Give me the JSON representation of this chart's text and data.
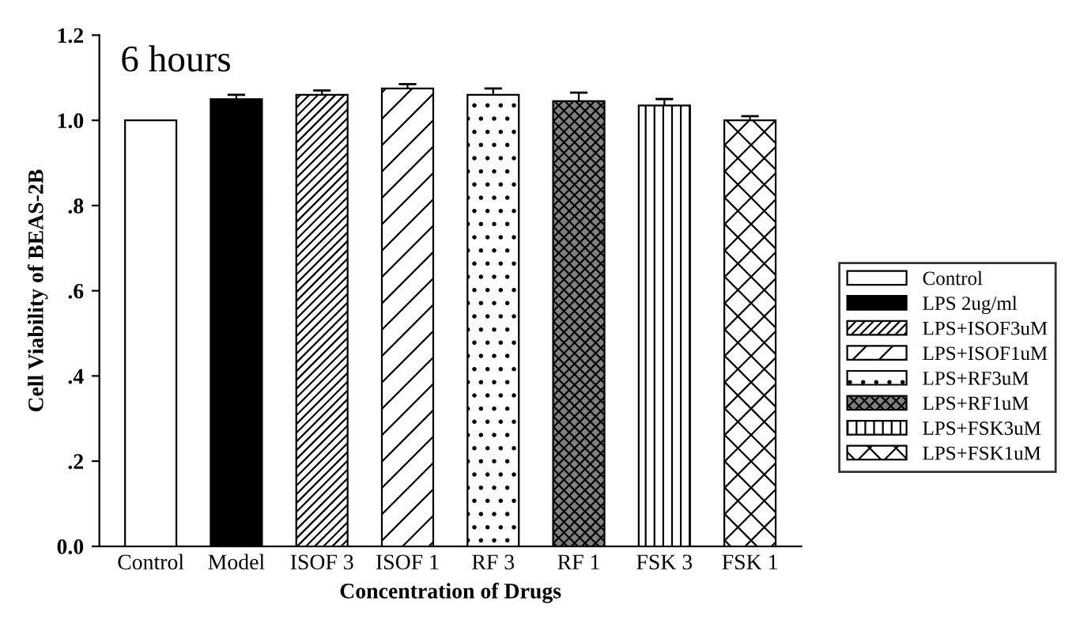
{
  "chart_data": {
    "type": "bar",
    "title": "6 hours",
    "xlabel": "Concentration of Drugs",
    "ylabel": "Cell Viability of BEAS-2B",
    "categories": [
      "Control",
      "Model",
      "ISOF 3",
      "ISOF 1",
      "RF 3",
      "RF 1",
      "FSK 3",
      "FSK 1"
    ],
    "series": [
      {
        "name": "Control",
        "color": "#ffffff",
        "values": [
          1.0,
          null,
          null,
          null,
          null,
          null,
          null,
          null
        ],
        "errors": [
          null,
          null,
          null,
          null,
          null,
          null,
          null,
          null
        ]
      },
      {
        "name": "LPS 2ug/ml",
        "color": "#000000",
        "values": [
          null,
          1.05,
          null,
          null,
          null,
          null,
          null,
          null
        ],
        "errors": [
          null,
          0.01,
          null,
          null,
          null,
          null,
          null,
          null
        ]
      },
      {
        "name": "LPS+ISOF3uM",
        "color": "#ffffff",
        "values": [
          null,
          null,
          1.06,
          null,
          null,
          null,
          null,
          null
        ],
        "errors": [
          null,
          null,
          0.01,
          null,
          null,
          null,
          null,
          null
        ]
      },
      {
        "name": "LPS+ISOF1uM",
        "color": "#ffffff",
        "values": [
          null,
          null,
          null,
          1.075,
          null,
          null,
          null,
          null
        ],
        "errors": [
          null,
          null,
          null,
          0.01,
          null,
          null,
          null,
          null
        ]
      },
      {
        "name": "LPS+RF3uM",
        "color": "#ffffff",
        "values": [
          null,
          null,
          null,
          null,
          1.06,
          null,
          null,
          null
        ],
        "errors": [
          null,
          null,
          null,
          null,
          0.015,
          null,
          null,
          null
        ]
      },
      {
        "name": "LPS+RF1uM",
        "color": "#808080",
        "values": [
          null,
          null,
          null,
          null,
          null,
          1.045,
          null,
          null
        ],
        "errors": [
          null,
          null,
          null,
          null,
          null,
          0.02,
          null,
          null
        ]
      },
      {
        "name": "LPS+FSK3uM",
        "color": "#ffffff",
        "values": [
          null,
          null,
          null,
          null,
          null,
          null,
          1.035,
          null
        ],
        "errors": [
          null,
          null,
          null,
          null,
          null,
          null,
          0.015,
          null
        ]
      },
      {
        "name": "LPS+FSK1uM",
        "color": "#ffffff",
        "values": [
          null,
          null,
          null,
          null,
          null,
          null,
          null,
          1.0
        ],
        "errors": [
          null,
          null,
          null,
          null,
          null,
          null,
          null,
          0.01
        ]
      }
    ],
    "ylim": [
      0,
      1.2
    ],
    "yticks": [
      {
        "value": 0,
        "label": "0.0"
      },
      {
        "value": 0.2,
        "label": ".2"
      },
      {
        "value": 0.4,
        "label": ".4"
      },
      {
        "value": 0.6,
        "label": ".6"
      },
      {
        "value": 0.8,
        "label": ".8"
      },
      {
        "value": 1.0,
        "label": "1.0"
      },
      {
        "value": 1.2,
        "label": "1.2"
      }
    ],
    "grid": false,
    "legend": "right"
  }
}
